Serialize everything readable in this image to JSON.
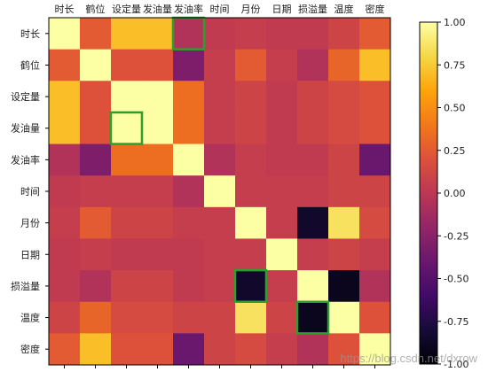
{
  "chart_data": {
    "type": "heatmap",
    "title": "",
    "xlabel": "",
    "ylabel": "",
    "x_categories": [
      "时长",
      "鹤位",
      "设定量",
      "发油量",
      "发油率",
      "时间",
      "月份",
      "日期",
      "损溢量",
      "温度",
      "密度"
    ],
    "y_categories": [
      "时长",
      "鹤位",
      "设定量",
      "发油量",
      "发油率",
      "时间",
      "月份",
      "日期",
      "损溢量",
      "温度",
      "密度"
    ],
    "values": [
      [
        1.0,
        0.25,
        0.7,
        0.7,
        -0.05,
        0.03,
        0.05,
        0.03,
        0.03,
        0.1,
        0.25
      ],
      [
        0.25,
        1.0,
        0.2,
        0.2,
        -0.3,
        0.05,
        0.25,
        0.05,
        -0.05,
        0.3,
        0.7
      ],
      [
        0.7,
        0.2,
        1.0,
        1.0,
        0.35,
        0.05,
        0.1,
        0.03,
        0.1,
        0.15,
        0.2
      ],
      [
        0.7,
        0.2,
        1.0,
        1.0,
        0.35,
        0.05,
        0.1,
        0.03,
        0.1,
        0.15,
        0.2
      ],
      [
        -0.05,
        -0.3,
        0.35,
        0.35,
        1.0,
        -0.05,
        0.05,
        0.03,
        0.03,
        0.1,
        -0.4
      ],
      [
        0.03,
        0.05,
        0.05,
        0.05,
        -0.05,
        1.0,
        0.05,
        0.05,
        0.05,
        0.1,
        0.1
      ],
      [
        0.05,
        0.25,
        0.1,
        0.1,
        0.05,
        0.05,
        1.0,
        0.05,
        -0.85,
        0.85,
        0.15
      ],
      [
        0.03,
        0.05,
        0.03,
        0.03,
        0.03,
        0.05,
        0.05,
        1.0,
        0.05,
        0.1,
        0.05
      ],
      [
        0.03,
        -0.05,
        0.1,
        0.1,
        0.03,
        0.05,
        -0.85,
        0.05,
        1.0,
        -0.9,
        -0.05
      ],
      [
        0.1,
        0.3,
        0.15,
        0.15,
        0.1,
        0.1,
        0.85,
        0.1,
        -0.9,
        1.0,
        0.2
      ],
      [
        0.25,
        0.7,
        0.2,
        0.2,
        -0.4,
        0.1,
        0.15,
        0.05,
        -0.05,
        0.2,
        1.0
      ]
    ],
    "vmin": -1.0,
    "vmax": 1.0,
    "colormap": "inferno",
    "colorbar_ticks": [
      "1.00",
      "0.75",
      "0.50",
      "0.25",
      "0.00",
      "-0.25",
      "-0.50",
      "-0.75",
      "-1.00"
    ],
    "colorbar_tick_values": [
      1.0,
      0.75,
      0.5,
      0.25,
      0.0,
      -0.25,
      -0.5,
      -0.75,
      -1.0
    ],
    "highlight_cells": [
      {
        "row": 0,
        "col": 4
      },
      {
        "row": 3,
        "col": 2
      },
      {
        "row": 8,
        "col": 6
      },
      {
        "row": 9,
        "col": 8
      }
    ],
    "highlight_color": "#2ca02c",
    "grid": false
  },
  "watermark": "https://blog.csdn.net/dxrow"
}
